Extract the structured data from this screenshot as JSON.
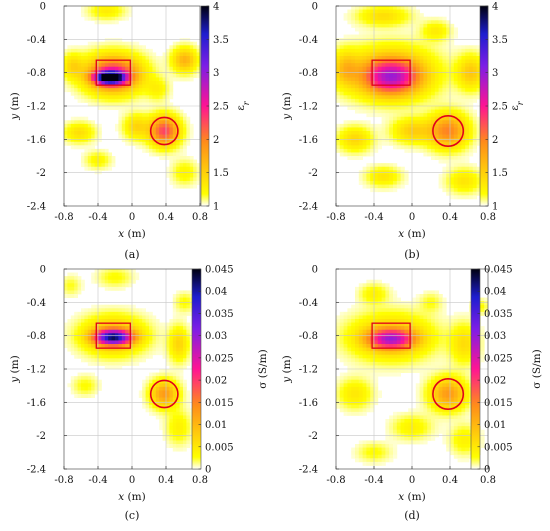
{
  "chart_data": [
    {
      "type": "heatmap",
      "panel_label": "(a)",
      "xlabel_var": "x",
      "xlabel_unit": "(m)",
      "ylabel_var": "y",
      "ylabel_unit": "(m)",
      "colorbar_label_main": "ε",
      "colorbar_label_sub": "r",
      "xlim": [
        -0.8,
        0.8
      ],
      "ylim": [
        -2.4,
        0
      ],
      "x_ticks": [
        "-0.8",
        "-0.4",
        "0",
        "0.4",
        "0.8"
      ],
      "y_ticks": [
        "0",
        "-0.4",
        "-0.8",
        "-1.2",
        "-1.6",
        "-2",
        "-2.4"
      ],
      "colorbar_range": [
        1,
        4
      ],
      "colorbar_ticks": [
        "4",
        "3.5",
        "3",
        "2.5",
        "2",
        "1.5",
        "1"
      ],
      "grid": true,
      "rect_target": {
        "x0": -0.42,
        "x1": -0.02,
        "y0": -0.95,
        "y1": -0.65
      },
      "circle_target": {
        "cx": 0.38,
        "cy": -1.5,
        "r": 0.16
      },
      "blobs": [
        {
          "x": -0.26,
          "y": -0.86,
          "sx": 0.12,
          "sy": 0.05,
          "v": 2.7
        },
        {
          "x": -0.22,
          "y": -0.82,
          "sx": 0.22,
          "sy": 0.15,
          "v": 1.5
        },
        {
          "x": 0.38,
          "y": -1.5,
          "sx": 0.12,
          "sy": 0.12,
          "v": 1.3
        },
        {
          "x": 0.62,
          "y": -0.65,
          "sx": 0.1,
          "sy": 0.1,
          "v": 0.7
        },
        {
          "x": -0.3,
          "y": -0.06,
          "sx": 0.14,
          "sy": 0.07,
          "v": 0.3
        },
        {
          "x": -0.7,
          "y": -0.72,
          "sx": 0.08,
          "sy": 0.1,
          "v": 0.4
        },
        {
          "x": 0.05,
          "y": -1.45,
          "sx": 0.1,
          "sy": 0.1,
          "v": 0.45
        },
        {
          "x": -0.62,
          "y": -1.52,
          "sx": 0.12,
          "sy": 0.08,
          "v": 0.4
        },
        {
          "x": 0.3,
          "y": -1.0,
          "sx": 0.09,
          "sy": 0.09,
          "v": 0.25
        },
        {
          "x": -0.4,
          "y": -1.85,
          "sx": 0.1,
          "sy": 0.07,
          "v": 0.25
        },
        {
          "x": 0.62,
          "y": -2.0,
          "sx": 0.1,
          "sy": 0.1,
          "v": 0.25
        }
      ]
    },
    {
      "type": "heatmap",
      "panel_label": "(b)",
      "xlabel_var": "x",
      "xlabel_unit": "(m)",
      "ylabel_var": "y",
      "ylabel_unit": "(m)",
      "colorbar_label_main": "ε",
      "colorbar_label_sub": "r",
      "xlim": [
        -0.8,
        0.8
      ],
      "ylim": [
        -2.4,
        0
      ],
      "x_ticks": [
        "-0.8",
        "-0.4",
        "0",
        "0.4",
        "0.8"
      ],
      "y_ticks": [
        "0",
        "-0.4",
        "-0.8",
        "-1.2",
        "-1.6",
        "-2",
        "-2.4"
      ],
      "colorbar_range": [
        1,
        4
      ],
      "colorbar_ticks": [
        "4",
        "3.5",
        "3",
        "2.5",
        "2",
        "1.5",
        "1"
      ],
      "grid": true,
      "rect_target": {
        "x0": -0.42,
        "x1": -0.02,
        "y0": -0.95,
        "y1": -0.65
      },
      "circle_target": {
        "cx": 0.38,
        "cy": -1.5,
        "r": 0.16
      },
      "blobs": [
        {
          "x": -0.22,
          "y": -0.86,
          "sx": 0.2,
          "sy": 0.14,
          "v": 1.2
        },
        {
          "x": -0.22,
          "y": -0.8,
          "sx": 0.3,
          "sy": 0.2,
          "v": 0.8
        },
        {
          "x": 0.38,
          "y": -1.5,
          "sx": 0.14,
          "sy": 0.14,
          "v": 1.0
        },
        {
          "x": -0.3,
          "y": -0.12,
          "sx": 0.18,
          "sy": 0.08,
          "v": 0.4
        },
        {
          "x": 0.62,
          "y": -0.8,
          "sx": 0.1,
          "sy": 0.14,
          "v": 0.55
        },
        {
          "x": -0.7,
          "y": -0.75,
          "sx": 0.09,
          "sy": 0.14,
          "v": 0.5
        },
        {
          "x": 0.0,
          "y": -1.5,
          "sx": 0.14,
          "sy": 0.1,
          "v": 0.5
        },
        {
          "x": -0.6,
          "y": -1.6,
          "sx": 0.12,
          "sy": 0.1,
          "v": 0.45
        },
        {
          "x": -0.3,
          "y": -2.05,
          "sx": 0.12,
          "sy": 0.08,
          "v": 0.35
        },
        {
          "x": 0.55,
          "y": -2.1,
          "sx": 0.12,
          "sy": 0.1,
          "v": 0.35
        },
        {
          "x": 0.25,
          "y": -0.3,
          "sx": 0.1,
          "sy": 0.08,
          "v": 0.3
        }
      ]
    },
    {
      "type": "heatmap",
      "panel_label": "(c)",
      "xlabel_var": "x",
      "xlabel_unit": "(m)",
      "ylabel_var": "y",
      "ylabel_unit": "(m)",
      "colorbar_label_main": "σ (S/m)",
      "colorbar_label_sub": "",
      "xlim": [
        -0.8,
        0.8
      ],
      "ylim": [
        -2.4,
        0
      ],
      "x_ticks": [
        "-0.8",
        "-0.4",
        "0",
        "0.4",
        "0.8"
      ],
      "y_ticks": [
        "0",
        "-0.4",
        "-0.8",
        "-1.2",
        "-1.6",
        "-2",
        "-2.4"
      ],
      "colorbar_range": [
        0,
        0.045
      ],
      "colorbar_ticks": [
        "0.045",
        "0.04",
        "0.035",
        "0.03",
        "0.025",
        "0.02",
        "0.015",
        "0.01",
        "0.005",
        "0"
      ],
      "grid": true,
      "rect_target": {
        "x0": -0.42,
        "x1": -0.02,
        "y0": -0.95,
        "y1": -0.65
      },
      "circle_target": {
        "cx": 0.38,
        "cy": -1.5,
        "r": 0.16
      },
      "blobs": [
        {
          "x": -0.22,
          "y": -0.82,
          "sx": 0.15,
          "sy": 0.06,
          "v": 0.032
        },
        {
          "x": -0.22,
          "y": -0.8,
          "sx": 0.24,
          "sy": 0.15,
          "v": 0.012
        },
        {
          "x": 0.38,
          "y": -1.5,
          "sx": 0.11,
          "sy": 0.11,
          "v": 0.013
        },
        {
          "x": 0.55,
          "y": -0.9,
          "sx": 0.08,
          "sy": 0.14,
          "v": 0.007
        },
        {
          "x": -0.2,
          "y": -0.1,
          "sx": 0.14,
          "sy": 0.08,
          "v": 0.003
        },
        {
          "x": 0.55,
          "y": -1.9,
          "sx": 0.1,
          "sy": 0.14,
          "v": 0.004
        },
        {
          "x": -0.55,
          "y": -1.4,
          "sx": 0.1,
          "sy": 0.08,
          "v": 0.003
        },
        {
          "x": 0.62,
          "y": -0.4,
          "sx": 0.08,
          "sy": 0.08,
          "v": 0.003
        },
        {
          "x": -0.72,
          "y": -0.2,
          "sx": 0.08,
          "sy": 0.08,
          "v": 0.0025
        }
      ]
    },
    {
      "type": "heatmap",
      "panel_label": "(d)",
      "xlabel_var": "x",
      "xlabel_unit": "(m)",
      "ylabel_var": "y",
      "ylabel_unit": "(m)",
      "colorbar_label_main": "σ (S/m)",
      "colorbar_label_sub": "",
      "xlim": [
        -0.8,
        0.8
      ],
      "ylim": [
        -2.4,
        0
      ],
      "x_ticks": [
        "-0.8",
        "-0.4",
        "0",
        "0.4",
        "0.8"
      ],
      "y_ticks": [
        "0",
        "-0.4",
        "-0.8",
        "-1.2",
        "-1.6",
        "-2",
        "-2.4"
      ],
      "colorbar_range": [
        0,
        0.045
      ],
      "colorbar_ticks": [
        "0.045",
        "0.04",
        "0.035",
        "0.03",
        "0.025",
        "0.02",
        "0.015",
        "0.01",
        "0.005",
        "0"
      ],
      "grid": true,
      "rect_target": {
        "x0": -0.42,
        "x1": -0.02,
        "y0": -0.95,
        "y1": -0.65
      },
      "circle_target": {
        "cx": 0.38,
        "cy": -1.5,
        "r": 0.16
      },
      "blobs": [
        {
          "x": -0.22,
          "y": -0.84,
          "sx": 0.17,
          "sy": 0.08,
          "v": 0.02
        },
        {
          "x": -0.22,
          "y": -0.82,
          "sx": 0.28,
          "sy": 0.18,
          "v": 0.01
        },
        {
          "x": 0.38,
          "y": -1.5,
          "sx": 0.13,
          "sy": 0.13,
          "v": 0.013
        },
        {
          "x": 0.55,
          "y": -0.9,
          "sx": 0.1,
          "sy": 0.16,
          "v": 0.006
        },
        {
          "x": -0.4,
          "y": -0.3,
          "sx": 0.1,
          "sy": 0.08,
          "v": 0.004
        },
        {
          "x": -0.6,
          "y": -1.5,
          "sx": 0.12,
          "sy": 0.12,
          "v": 0.005
        },
        {
          "x": 0.0,
          "y": -1.9,
          "sx": 0.14,
          "sy": 0.1,
          "v": 0.004
        },
        {
          "x": 0.55,
          "y": -2.05,
          "sx": 0.1,
          "sy": 0.12,
          "v": 0.004
        },
        {
          "x": -0.4,
          "y": -2.2,
          "sx": 0.12,
          "sy": 0.08,
          "v": 0.003
        },
        {
          "x": 0.2,
          "y": -0.4,
          "sx": 0.08,
          "sy": 0.08,
          "v": 0.0025
        },
        {
          "x": 0.72,
          "y": -0.45,
          "sx": 0.06,
          "sy": 0.06,
          "v": 0.003
        }
      ]
    }
  ],
  "colors": {
    "colormap": [
      "#ffffff",
      "#ffff00",
      "#ff8c1a",
      "#ff1493",
      "#7d1ee6",
      "#1e1ecf",
      "#000010"
    ],
    "target_outline": "#e0001a",
    "grid": "#c8c8c8",
    "axis": "#000000"
  }
}
